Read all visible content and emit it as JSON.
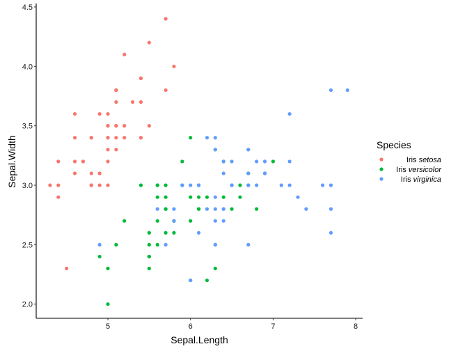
{
  "chart_data": {
    "type": "scatter",
    "title": "",
    "xlabel": "Sepal.Length",
    "ylabel": "Sepal.Width",
    "xlim": [
      4.18,
      8.1
    ],
    "ylim": [
      1.88,
      4.52
    ],
    "x_ticks": [
      5,
      6,
      7,
      8
    ],
    "x_tick_labels": [
      "5",
      "6",
      "7",
      "8"
    ],
    "y_ticks": [
      2.0,
      2.5,
      3.0,
      3.5,
      4.0,
      4.5
    ],
    "y_tick_labels": [
      "2.0",
      "2.5",
      "3.0",
      "3.5",
      "4.0",
      "4.5"
    ],
    "grid": false,
    "legend": {
      "title": "Species",
      "position": "right",
      "entries": [
        {
          "prefix": "Iris ",
          "italic": "setosa",
          "color": "#F8766D"
        },
        {
          "prefix": "Iris ",
          "italic": "versicolor",
          "color": "#00BA38"
        },
        {
          "prefix": "Iris ",
          "italic": "virginica",
          "color": "#619CFF"
        }
      ]
    },
    "series": [
      {
        "name": "setosa",
        "color": "#F8766D",
        "x": [
          5.1,
          4.9,
          4.7,
          4.6,
          5.0,
          5.4,
          4.6,
          5.0,
          4.4,
          4.9,
          5.4,
          4.8,
          4.8,
          4.3,
          5.8,
          5.7,
          5.4,
          5.1,
          5.7,
          5.1,
          5.4,
          5.1,
          4.6,
          5.1,
          4.8,
          5.0,
          5.0,
          5.2,
          5.2,
          4.7,
          4.8,
          5.4,
          5.2,
          5.5,
          4.9,
          5.0,
          5.5,
          4.9,
          4.4,
          5.1,
          5.0,
          4.5,
          4.4,
          5.0,
          5.1,
          4.8,
          5.1,
          4.6,
          5.3,
          5.0
        ],
        "y": [
          3.5,
          3.0,
          3.2,
          3.1,
          3.6,
          3.9,
          3.4,
          3.4,
          2.9,
          3.1,
          3.7,
          3.4,
          3.0,
          3.0,
          4.0,
          4.4,
          3.9,
          3.5,
          3.8,
          3.8,
          3.4,
          3.7,
          3.6,
          3.3,
          3.4,
          3.0,
          3.4,
          3.5,
          3.4,
          3.2,
          3.1,
          3.4,
          4.1,
          4.2,
          3.1,
          3.2,
          3.5,
          3.6,
          3.0,
          3.4,
          3.5,
          2.3,
          3.2,
          3.5,
          3.8,
          3.0,
          3.8,
          3.2,
          3.7,
          3.3
        ]
      },
      {
        "name": "versicolor",
        "color": "#00BA38",
        "x": [
          7.0,
          6.4,
          6.9,
          5.5,
          6.5,
          5.7,
          6.3,
          4.9,
          6.6,
          5.2,
          5.0,
          5.9,
          6.0,
          6.1,
          5.6,
          6.7,
          5.6,
          5.8,
          6.2,
          5.6,
          5.9,
          6.1,
          6.3,
          6.1,
          6.4,
          6.6,
          6.8,
          6.7,
          6.0,
          5.7,
          5.5,
          5.5,
          5.8,
          6.0,
          5.4,
          6.0,
          6.7,
          6.3,
          5.6,
          5.5,
          5.5,
          6.1,
          5.8,
          5.0,
          5.6,
          5.7,
          5.7,
          6.2,
          5.1,
          5.7
        ],
        "y": [
          3.2,
          3.2,
          3.1,
          2.3,
          2.8,
          2.8,
          3.3,
          2.4,
          2.9,
          2.7,
          2.0,
          3.0,
          2.2,
          2.9,
          2.9,
          3.1,
          3.0,
          2.7,
          2.2,
          2.5,
          3.2,
          2.8,
          2.5,
          2.8,
          2.9,
          3.0,
          2.8,
          3.0,
          2.9,
          2.6,
          2.4,
          2.4,
          2.7,
          2.7,
          3.0,
          3.4,
          3.1,
          2.3,
          3.0,
          2.5,
          2.6,
          3.0,
          2.6,
          2.3,
          2.7,
          3.0,
          2.9,
          2.9,
          2.5,
          2.8
        ]
      },
      {
        "name": "virginica",
        "color": "#619CFF",
        "x": [
          6.3,
          5.8,
          7.1,
          6.3,
          6.5,
          7.6,
          4.9,
          7.3,
          6.7,
          7.2,
          6.5,
          6.4,
          6.8,
          5.7,
          5.8,
          6.4,
          6.5,
          7.7,
          7.7,
          6.0,
          6.9,
          5.6,
          7.7,
          6.3,
          6.7,
          7.2,
          6.2,
          6.1,
          6.4,
          7.2,
          7.4,
          7.9,
          6.4,
          6.3,
          6.1,
          7.7,
          6.3,
          6.4,
          6.0,
          6.9,
          6.7,
          6.9,
          5.8,
          6.8,
          6.7,
          6.7,
          6.3,
          6.5,
          6.2,
          5.9
        ],
        "y": [
          3.3,
          2.7,
          3.0,
          2.9,
          3.0,
          3.0,
          2.5,
          2.9,
          2.5,
          3.6,
          3.2,
          2.7,
          3.0,
          2.5,
          2.8,
          3.2,
          3.0,
          3.8,
          2.6,
          2.2,
          3.2,
          2.8,
          2.8,
          2.7,
          3.3,
          3.2,
          2.8,
          3.0,
          2.8,
          3.0,
          2.8,
          3.8,
          2.8,
          2.8,
          2.6,
          3.0,
          3.4,
          3.1,
          3.0,
          3.1,
          3.1,
          3.1,
          2.7,
          3.2,
          3.3,
          3.0,
          2.5,
          3.0,
          3.4,
          3.0
        ]
      }
    ]
  }
}
